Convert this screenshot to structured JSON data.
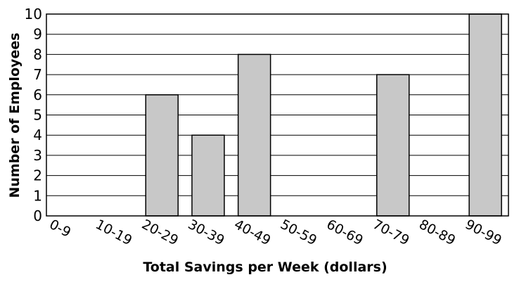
{
  "chart_data": {
    "type": "bar",
    "categories": [
      "0-9",
      "10-19",
      "20-29",
      "30-39",
      "40-49",
      "50-59",
      "60-69",
      "70-79",
      "80-89",
      "90-99"
    ],
    "values": [
      0,
      0,
      6,
      4,
      8,
      0,
      0,
      7,
      0,
      10
    ],
    "xlabel": "Total Savings per Week (dollars)",
    "ylabel": "Number of Employees",
    "ylim": [
      0,
      10
    ],
    "yticks": [
      0,
      1,
      2,
      3,
      4,
      5,
      6,
      7,
      8,
      9,
      10
    ],
    "grid": true,
    "bar_color": "#c8c8c8"
  }
}
